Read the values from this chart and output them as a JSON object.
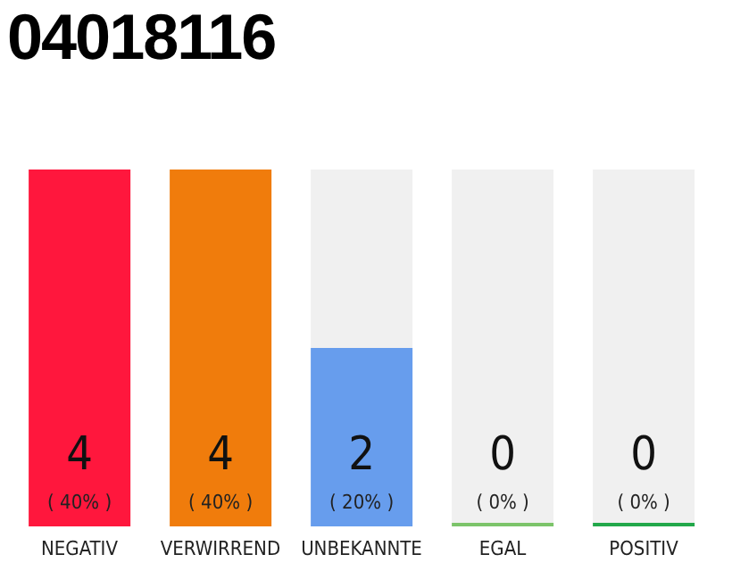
{
  "chart_data": {
    "type": "bar",
    "title": "04018116",
    "categories": [
      "NEGATIV",
      "VERWIRREND",
      "UNBEKANNTE",
      "EGAL",
      "POSITIV"
    ],
    "values": [
      4,
      4,
      2,
      0,
      0
    ],
    "colors": [
      "#ff173d",
      "#f07c0c",
      "#679ded",
      "#7cc46a",
      "#22a84a"
    ],
    "value_labels": [
      "4",
      "4",
      "2",
      "0",
      "0"
    ],
    "annotations": [
      "( 40% )",
      "( 40% )",
      "( 20% )",
      "( 0% )",
      "( 0% )"
    ]
  }
}
